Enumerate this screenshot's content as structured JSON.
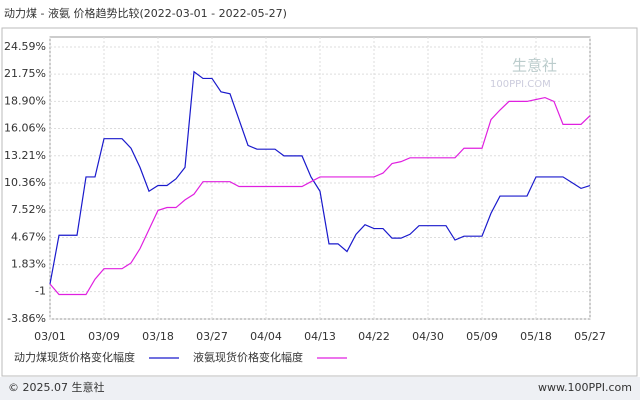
{
  "chart_data": {
    "type": "line",
    "title": "动力煤 - 液氨 价格趋势比较(2022-03-01 - 2022-05-27)",
    "watermark": [
      "生意社",
      "100PPI.COM"
    ],
    "footer": [
      "© 2025.07 生意社",
      "www.100PPI.com"
    ],
    "categories": [
      "03/01",
      null,
      null,
      null,
      null,
      null,
      "03/09",
      null,
      null,
      null,
      null,
      null,
      "03/18",
      null,
      null,
      null,
      null,
      null,
      "03/27",
      null,
      null,
      null,
      null,
      null,
      "04/04",
      null,
      null,
      null,
      null,
      null,
      "04/13",
      null,
      null,
      null,
      null,
      null,
      "04/22",
      null,
      null,
      null,
      null,
      null,
      "04/30",
      null,
      null,
      null,
      null,
      null,
      "05/09",
      null,
      null,
      null,
      null,
      null,
      "05/18",
      null,
      null,
      null,
      null,
      null,
      "05/27"
    ],
    "ylim": [
      -3.86,
      24.59
    ],
    "yticks": [
      {
        "value": -3.86,
        "label": "-3.86%"
      },
      -1,
      {
        "value": 1.83,
        "label": "1.83%"
      },
      {
        "value": 4.67,
        "label": "4.67%"
      },
      {
        "value": 7.52,
        "label": "7.52%"
      },
      {
        "value": 10.36,
        "label": "10.36%"
      },
      {
        "value": 13.21,
        "label": "13.21%"
      },
      {
        "value": 16.06,
        "label": "16.06%"
      },
      {
        "value": 18.9,
        "label": "18.90%"
      },
      {
        "value": 21.75,
        "label": "21.75%"
      },
      {
        "value": 24.59,
        "label": "24.59%"
      }
    ],
    "grid": true,
    "series": [
      {
        "name": "动力煤现货价格变化幅度",
        "color": "#1a1acc",
        "values": [
          -0.2,
          4.9,
          4.9,
          4.9,
          11.0,
          11.0,
          15.0,
          15.0,
          15.0,
          14.0,
          12.0,
          9.5,
          10.1,
          10.1,
          10.8,
          12.0,
          22.0,
          21.3,
          21.3,
          19.9,
          19.7,
          17.0,
          14.3,
          13.9,
          13.9,
          13.9,
          13.2,
          13.2,
          13.2,
          11.0,
          9.5,
          4.0,
          4.0,
          3.2,
          5.0,
          6.0,
          5.6,
          5.6,
          4.6,
          4.6,
          5.0,
          5.9,
          5.9,
          5.9,
          5.9,
          4.4,
          4.8,
          4.8,
          4.8,
          7.2,
          9.0,
          9.0,
          9.0,
          9.0,
          11.0,
          11.0,
          11.0,
          11.0,
          10.4,
          9.8,
          10.1
        ]
      },
      {
        "name": "液氨现货价格变化幅度",
        "color": "#e020e0",
        "values": [
          -0.2,
          -1.3,
          -1.3,
          -1.3,
          -1.3,
          0.3,
          1.4,
          1.4,
          1.4,
          2.0,
          3.5,
          5.5,
          7.5,
          7.8,
          7.8,
          8.6,
          9.2,
          10.5,
          10.5,
          10.5,
          10.5,
          10.0,
          10.0,
          10.0,
          10.0,
          10.0,
          10.0,
          10.0,
          10.0,
          10.5,
          11.0,
          11.0,
          11.0,
          11.0,
          11.0,
          11.0,
          11.0,
          11.4,
          12.4,
          12.6,
          13.0,
          13.0,
          13.0,
          13.0,
          13.0,
          13.0,
          14.0,
          14.0,
          14.0,
          17.0,
          18.0,
          18.9,
          18.9,
          18.9,
          19.1,
          19.3,
          18.9,
          16.5,
          16.5,
          16.5,
          17.4
        ]
      }
    ]
  }
}
